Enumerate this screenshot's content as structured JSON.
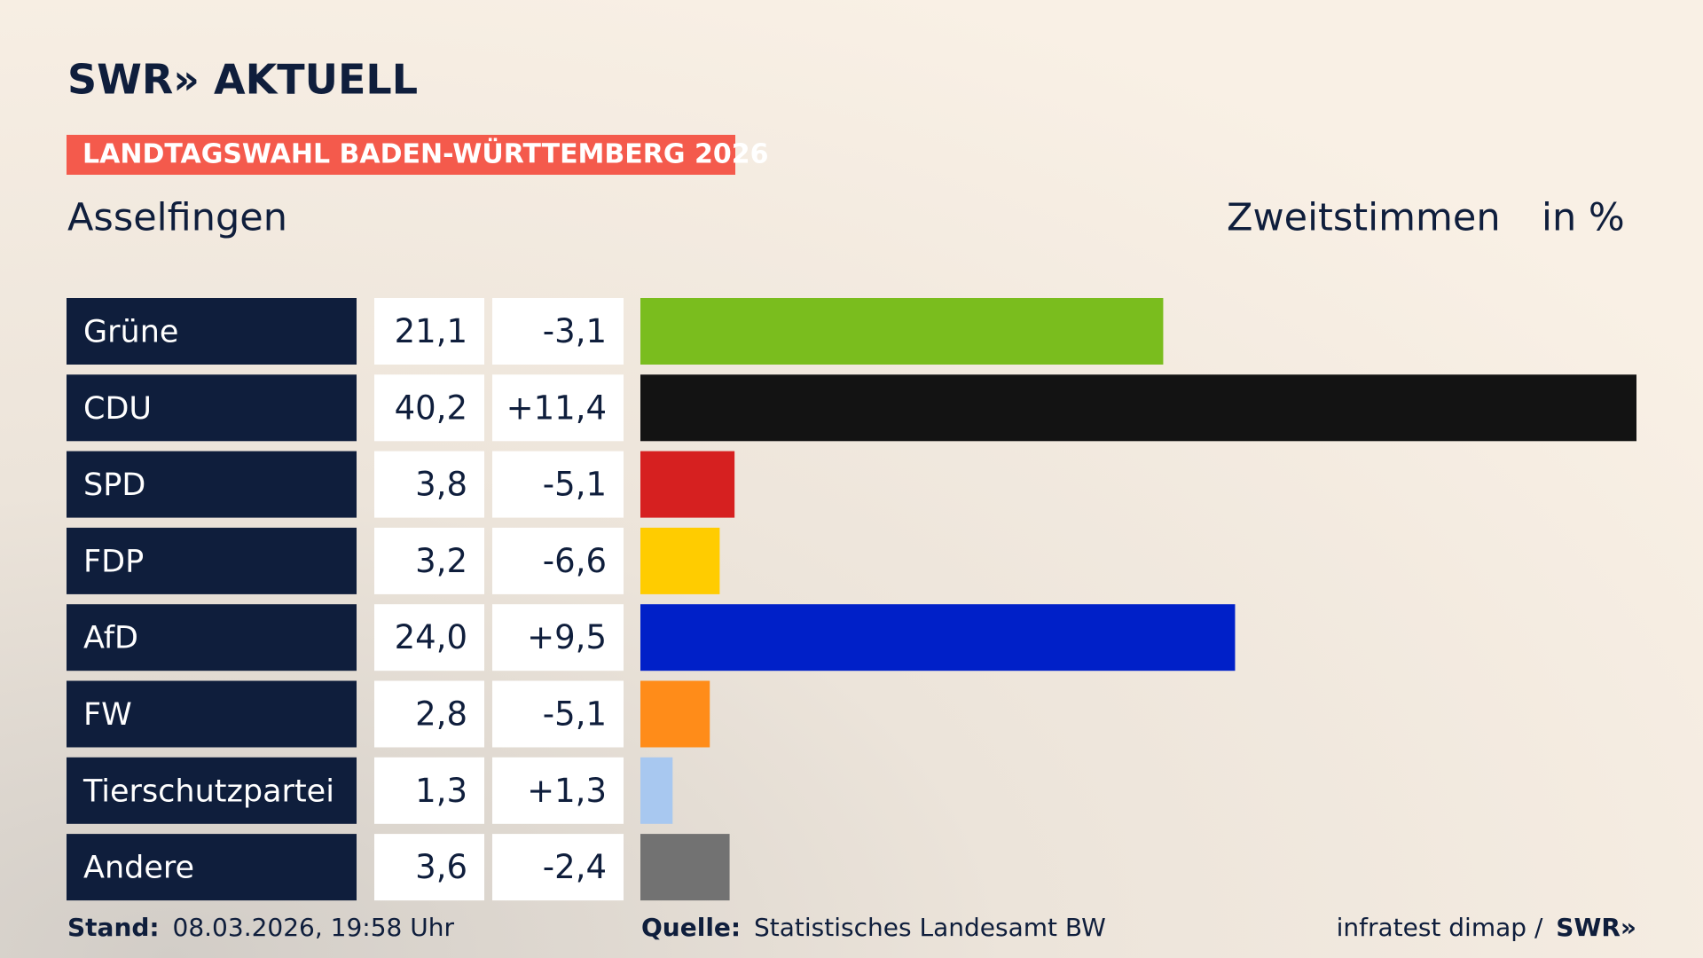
{
  "header": {
    "logo": "SWR» AKTUELL",
    "banner": "LANDTAGSWAHL BADEN-WÜRTTEMBERG 2026",
    "place": "Asselfingen",
    "measure": "Zweitstimmen",
    "unit": "in %"
  },
  "chart_data": {
    "type": "bar",
    "orientation": "horizontal",
    "categories": [
      "Grüne",
      "CDU",
      "SPD",
      "FDP",
      "AfD",
      "FW",
      "Tierschutzpartei",
      "Andere"
    ],
    "values": [
      21.1,
      40.2,
      3.8,
      3.2,
      24.0,
      2.8,
      1.3,
      3.6
    ],
    "value_labels": [
      "21,1",
      "40,2",
      "3,8",
      "3,2",
      "24,0",
      "2,8",
      "1,3",
      "3,6"
    ],
    "changes": [
      "-3,1",
      "+11,4",
      "-5,1",
      "-6,6",
      "+9,5",
      "-5,1",
      "+1,3",
      "-2,4"
    ],
    "colors": [
      "#7abd1e",
      "#131313",
      "#d62020",
      "#ffcc00",
      "#0020c8",
      "#ff8c19",
      "#a8c8f0",
      "#727272"
    ]
  },
  "footer": {
    "stand_label": "Stand:",
    "stand": "08.03.2026, 19:58 Uhr",
    "source_label": "Quelle:",
    "source": "Statistisches Landesamt BW",
    "credit": "infratest dimap /",
    "credit_logo": "SWR»"
  }
}
